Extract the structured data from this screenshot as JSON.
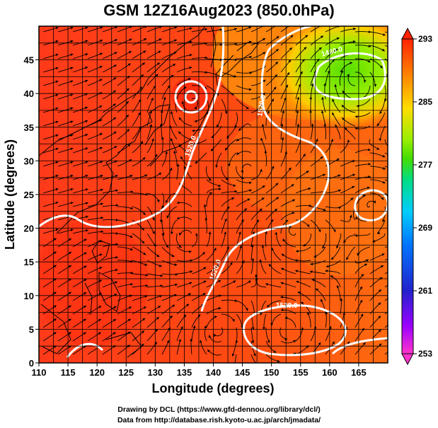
{
  "title": "GSM 12Z16Aug2023 (850.0hPa)",
  "xaxis": {
    "label": "Longitude (degrees)",
    "range": [
      110,
      170
    ],
    "ticks": [
      "110",
      "115",
      "120",
      "125",
      "130",
      "135",
      "140",
      "145",
      "150",
      "155",
      "160",
      "165"
    ]
  },
  "yaxis": {
    "label": "Latitude  (degrees)",
    "range": [
      0,
      50
    ],
    "ticks": [
      "0",
      "5",
      "10",
      "15",
      "20",
      "25",
      "30",
      "35",
      "40",
      "45"
    ]
  },
  "colorbar": {
    "range": [
      253,
      293
    ],
    "ticks": [
      "293",
      "285",
      "277",
      "269",
      "261",
      "253"
    ],
    "colors": [
      "#ff33cc",
      "#9900ff",
      "#2222cc",
      "#0077ff",
      "#00ccff",
      "#00dd88",
      "#44dd00",
      "#99ee00",
      "#ffdd00",
      "#ff9900",
      "#ff5500",
      "#ff2200"
    ]
  },
  "contours": {
    "color": "#ffffff",
    "labels": [
      "1520.0",
      "1520.0",
      "1520.0",
      "1520.0",
      "1480.0"
    ]
  },
  "credits": {
    "line1": "Drawing by DCL (https://www.gfd-dennou.org/library/dcl/)",
    "line2": "Data from http://database.rish.kyoto-u.ac.jp/arch/jmadata/"
  }
}
